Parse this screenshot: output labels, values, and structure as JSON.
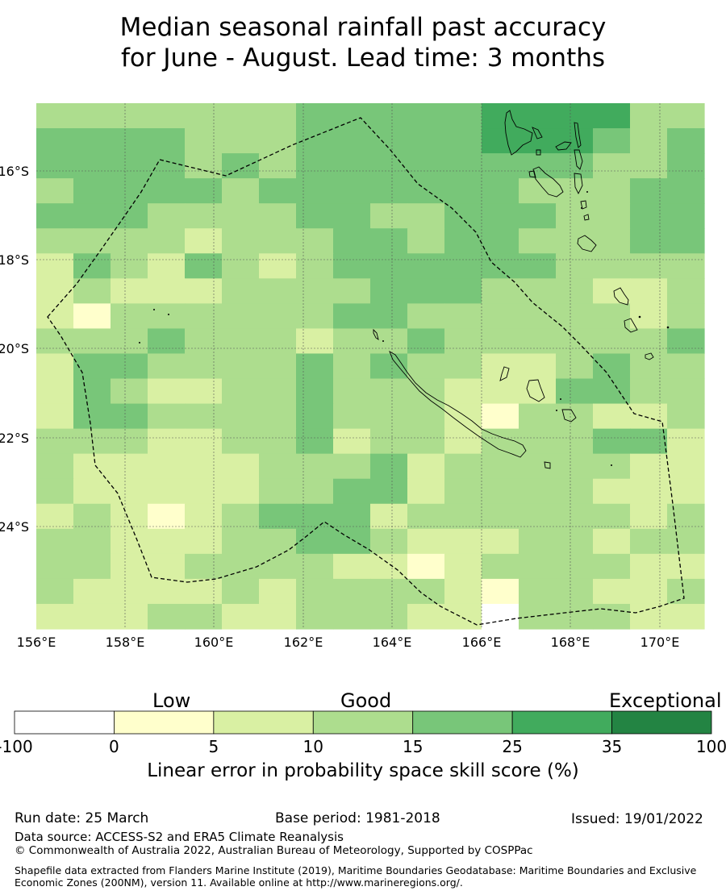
{
  "title": {
    "line1": "Median seasonal rainfall past accuracy",
    "line2": "for June - August. Lead time: 3 months"
  },
  "map": {
    "lon_ticks": [
      "156°E",
      "158°E",
      "160°E",
      "162°E",
      "164°E",
      "166°E",
      "168°E",
      "170°E"
    ],
    "lat_ticks": [
      "16°S",
      "18°S",
      "20°S",
      "22°S",
      "24°S"
    ]
  },
  "colorbar": {
    "categories": {
      "low": "Low",
      "good": "Good",
      "exceptional": "Exceptional"
    },
    "ticks": [
      "-100",
      "0",
      "5",
      "10",
      "15",
      "25",
      "35",
      "100"
    ],
    "colors": [
      "#ffffff",
      "#ffffcc",
      "#d9f0a3",
      "#addd8e",
      "#78c679",
      "#41ab5d",
      "#238443"
    ],
    "label": "Linear error in probability space skill score (%)"
  },
  "footer": {
    "run_date": "Run date: 25 March",
    "base_period": "Base period: 1981-2018",
    "issued": "Issued: 19/01/2022",
    "data_source": "Data source: ACCESS-S2 and ERA5 Climate Reanalysis",
    "copyright": "© Commonwealth of Australia 2022, Australian Bureau of Meteorology, Supported by COSPPac",
    "shapefile": "Shapefile data extracted from Flanders Marine Institute (2019), Maritime Boundaries Geodatabase: Maritime Boundaries and Exclusive Economic Zones (200NM), version 11. Available online at http://www.marineregions.org/."
  }
}
